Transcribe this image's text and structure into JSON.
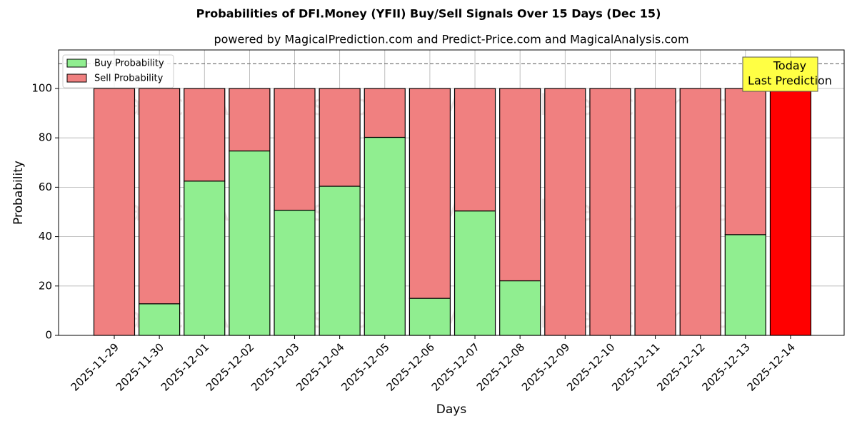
{
  "chart_data": {
    "type": "stacked_bar",
    "title": "Probabilities of DFI.Money (YFII) Buy/Sell Signals Over 15 Days (Dec 15)",
    "subtitle": "powered by MagicalPrediction.com and Predict-Price.com and MagicalAnalysis.com",
    "xlabel": "Days",
    "ylabel": "Probability",
    "categories": [
      "2025-11-29",
      "2025-11-30",
      "2025-12-01",
      "2025-12-02",
      "2025-12-03",
      "2025-12-04",
      "2025-12-05",
      "2025-12-06",
      "2025-12-07",
      "2025-12-08",
      "2025-12-09",
      "2025-12-10",
      "2025-12-11",
      "2025-12-12",
      "2025-12-13",
      "2025-12-14"
    ],
    "series": [
      {
        "name": "Buy Probability",
        "color": "#90ee90",
        "values": [
          0,
          12.8,
          62.5,
          74.7,
          50.7,
          60.4,
          80.2,
          15,
          50.4,
          22.1,
          0,
          0,
          0,
          0,
          40.8,
          0
        ]
      },
      {
        "name": "Sell Probability",
        "color": "#f08080",
        "values": [
          100,
          87.2,
          37.5,
          25.3,
          49.3,
          39.6,
          19.8,
          85,
          49.6,
          77.9,
          100,
          100,
          100,
          100,
          59.2,
          100
        ],
        "colors": [
          "#f08080",
          "#f08080",
          "#f08080",
          "#f08080",
          "#f08080",
          "#f08080",
          "#f08080",
          "#f08080",
          "#f08080",
          "#f08080",
          "#f08080",
          "#f08080",
          "#f08080",
          "#f08080",
          "#f08080",
          "#ff0000"
        ]
      }
    ],
    "ylim": [
      0,
      115.6
    ],
    "yticks": [
      0,
      20,
      40,
      60,
      80,
      100
    ],
    "grid": true,
    "legend": "upper-left",
    "reference_line": 110,
    "annotation": [
      "Today",
      "Last Prediction"
    ],
    "watermarks": [
      "MagicalAnalysis.com",
      "MagicalPrediction.com"
    ]
  }
}
